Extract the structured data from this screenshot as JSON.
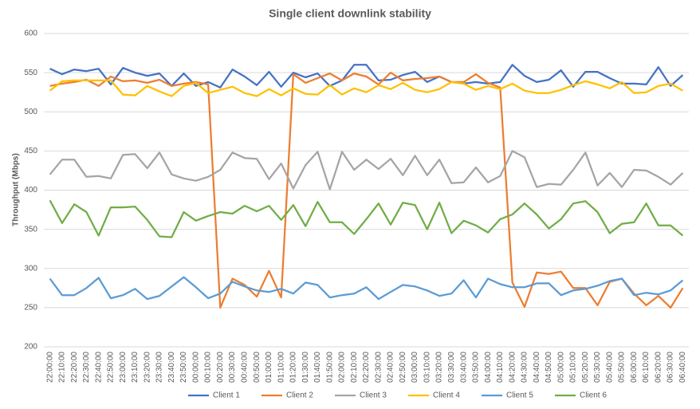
{
  "chart_data": {
    "type": "line",
    "title": "Single client downlink stability",
    "y_label": "Throughput (Mbps)",
    "categories": [
      "22:00:00",
      "22:10:00",
      "22:20:00",
      "22:30:00",
      "22:40:00",
      "22:50:00",
      "23:00:00",
      "23:10:00",
      "23:20:00",
      "23:30:00",
      "23:40:00",
      "23:50:00",
      "00:00:00",
      "00:10:00",
      "00:20:00",
      "00:30:00",
      "00:40:00",
      "00:50:00",
      "01:00:00",
      "01:10:00",
      "01:20:00",
      "01:30:00",
      "01:40:00",
      "01:50:00",
      "02:00:00",
      "02:10:00",
      "02:20:00",
      "02:30:00",
      "02:40:00",
      "02:50:00",
      "03:00:00",
      "03:10:00",
      "03:20:00",
      "03:30:00",
      "03:40:00",
      "03:50:00",
      "04:00:00",
      "04:10:00",
      "04:20:00",
      "04:30:00",
      "04:40:00",
      "04:50:00",
      "05:00:00",
      "05:10:00",
      "05:20:00",
      "05:30:00",
      "05:40:00",
      "05:50:00",
      "06:00:00",
      "06:10:00",
      "06:20:00",
      "06:30:00",
      "06:40:00"
    ],
    "series": [
      {
        "name": "Client 1",
        "color": "#4472c4",
        "values": [
          555,
          548,
          554,
          552,
          555,
          535,
          556,
          550,
          546,
          549,
          533,
          549,
          533,
          538,
          531,
          554,
          545,
          534,
          551,
          532,
          550,
          544,
          549,
          533,
          540,
          560,
          560,
          540,
          541,
          547,
          551,
          538,
          545,
          538,
          536,
          538,
          536,
          538,
          560,
          546,
          538,
          541,
          553,
          532,
          551,
          551,
          543,
          536,
          536,
          535,
          557,
          533,
          547
        ]
      },
      {
        "name": "Client 2",
        "color": "#ed7d31",
        "values": [
          533,
          536,
          538,
          541,
          533,
          545,
          539,
          540,
          537,
          541,
          533,
          536,
          538,
          535,
          250,
          287,
          279,
          264,
          297,
          263,
          548,
          537,
          543,
          549,
          540,
          549,
          545,
          535,
          550,
          540,
          542,
          543,
          545,
          538,
          538,
          548,
          537,
          531,
          282,
          251,
          295,
          293,
          296,
          275,
          275,
          253,
          283,
          287,
          268,
          253,
          265,
          250,
          275
        ]
      },
      {
        "name": "Client 3",
        "color": "#a5a5a5",
        "values": [
          420,
          439,
          439,
          417,
          418,
          415,
          445,
          446,
          428,
          448,
          420,
          415,
          412,
          417,
          426,
          448,
          441,
          440,
          414,
          434,
          402,
          432,
          449,
          401,
          449,
          426,
          439,
          427,
          440,
          419,
          444,
          419,
          439,
          409,
          410,
          429,
          410,
          418,
          450,
          442,
          404,
          408,
          407,
          426,
          448,
          406,
          422,
          404,
          426,
          425,
          417,
          407,
          422
        ]
      },
      {
        "name": "Client 4",
        "color": "#ffc000",
        "values": [
          527,
          539,
          540,
          540,
          540,
          540,
          522,
          521,
          533,
          526,
          520,
          533,
          537,
          524,
          528,
          532,
          524,
          520,
          529,
          521,
          530,
          523,
          522,
          534,
          522,
          530,
          525,
          534,
          529,
          537,
          528,
          525,
          529,
          538,
          536,
          528,
          533,
          529,
          536,
          527,
          524,
          524,
          528,
          534,
          539,
          535,
          530,
          538,
          524,
          525,
          533,
          536,
          527
        ]
      },
      {
        "name": "Client 5",
        "color": "#5b9bd5",
        "values": [
          287,
          266,
          266,
          275,
          288,
          262,
          266,
          274,
          261,
          265,
          277,
          289,
          276,
          262,
          268,
          283,
          277,
          272,
          270,
          274,
          268,
          282,
          279,
          263,
          266,
          268,
          276,
          261,
          270,
          279,
          277,
          272,
          265,
          268,
          285,
          263,
          287,
          280,
          276,
          276,
          281,
          281,
          266,
          272,
          274,
          278,
          284,
          287,
          266,
          269,
          267,
          272,
          285
        ]
      },
      {
        "name": "Client 6",
        "color": "#70ad47",
        "values": [
          387,
          358,
          382,
          372,
          342,
          378,
          378,
          379,
          362,
          341,
          340,
          372,
          361,
          367,
          372,
          370,
          380,
          373,
          380,
          362,
          381,
          354,
          385,
          359,
          359,
          344,
          363,
          383,
          356,
          384,
          381,
          350,
          384,
          345,
          361,
          355,
          346,
          363,
          369,
          383,
          369,
          351,
          363,
          383,
          386,
          372,
          345,
          357,
          359,
          383,
          355,
          355,
          342
        ]
      }
    ],
    "ylim": [
      200,
      600
    ],
    "yticks": [
      200,
      250,
      300,
      350,
      400,
      450,
      500,
      550,
      600
    ],
    "grid": true,
    "legend": "bottom"
  }
}
